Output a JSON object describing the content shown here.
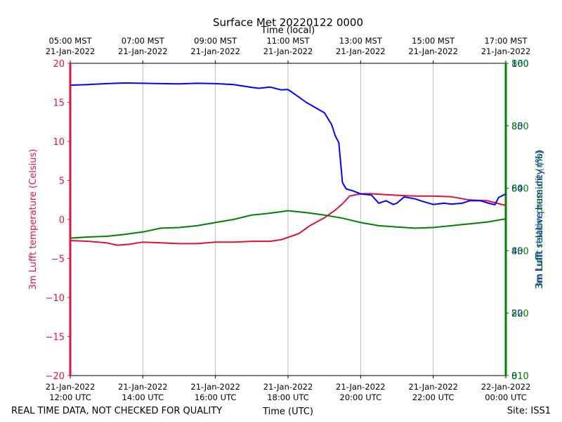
{
  "chart_data": {
    "type": "line",
    "title": "Surface Met 20220122 0000",
    "footer_left": "REAL TIME DATA, NOT CHECKED FOR QUALITY",
    "footer_right": "Site: ISS1",
    "xlabel_bottom": "Time (UTC)",
    "xlabel_top": "Time (local)",
    "xlim_hours_utc": [
      12,
      24
    ],
    "x_ticks_bottom": [
      {
        "hour": 12,
        "line1": "21-Jan-2022",
        "line2": "12:00 UTC"
      },
      {
        "hour": 14,
        "line1": "21-Jan-2022",
        "line2": "14:00 UTC"
      },
      {
        "hour": 16,
        "line1": "21-Jan-2022",
        "line2": "16:00 UTC"
      },
      {
        "hour": 18,
        "line1": "21-Jan-2022",
        "line2": "18:00 UTC"
      },
      {
        "hour": 20,
        "line1": "21-Jan-2022",
        "line2": "20:00 UTC"
      },
      {
        "hour": 22,
        "line1": "21-Jan-2022",
        "line2": "22:00 UTC"
      },
      {
        "hour": 24,
        "line1": "22-Jan-2022",
        "line2": "00:00 UTC"
      }
    ],
    "x_ticks_top": [
      {
        "hour": 12,
        "line1": "05:00 MST",
        "line2": "21-Jan-2022"
      },
      {
        "hour": 14,
        "line1": "07:00 MST",
        "line2": "21-Jan-2022"
      },
      {
        "hour": 16,
        "line1": "09:00 MST",
        "line2": "21-Jan-2022"
      },
      {
        "hour": 18,
        "line1": "11:00 MST",
        "line2": "21-Jan-2022"
      },
      {
        "hour": 20,
        "line1": "13:00 MST",
        "line2": "21-Jan-2022"
      },
      {
        "hour": 22,
        "line1": "15:00 MST",
        "line2": "21-Jan-2022"
      },
      {
        "hour": 24,
        "line1": "17:00 MST",
        "line2": "21-Jan-2022"
      }
    ],
    "left_axis": {
      "label": "3m Lufft temperature (Celsius)",
      "color": "#dc143c",
      "ylim": [
        -20,
        20
      ],
      "ticks": [
        "−20",
        "−15",
        "−10",
        "−5",
        "0",
        "5",
        "10",
        "15",
        "20"
      ]
    },
    "right_axes": [
      {
        "name": "humidity",
        "color": "#0000ff",
        "label": "3m Lufft relative humidity (%)",
        "ylim": [
          0,
          100
        ],
        "ticks": [
          "0",
          "20",
          "40",
          "60",
          "80",
          "100"
        ]
      },
      {
        "name": "pressure",
        "color": "#008000",
        "label": "3m Lufft station pressure (mb)",
        "ylim": [
          810,
          860
        ],
        "ticks": [
          "810",
          "820",
          "830",
          "840",
          "850",
          "860"
        ]
      }
    ],
    "series": [
      {
        "name": "3m Lufft temperature",
        "axis": "left",
        "color": "#dc143c",
        "x": [
          12.0,
          12.5,
          13.0,
          13.3,
          13.6,
          14.0,
          14.5,
          15.0,
          15.5,
          16.0,
          16.5,
          17.0,
          17.5,
          17.8,
          18.0,
          18.3,
          18.6,
          19.0,
          19.3,
          19.5,
          19.7,
          19.9,
          20.1,
          20.3,
          20.6,
          21.0,
          21.5,
          22.0,
          22.5,
          23.0,
          23.5,
          23.9,
          24.0
        ],
        "y": [
          -2.7,
          -2.8,
          -3.0,
          -3.3,
          -3.2,
          -2.9,
          -3.0,
          -3.1,
          -3.1,
          -2.9,
          -2.9,
          -2.8,
          -2.8,
          -2.6,
          -2.3,
          -1.8,
          -0.8,
          0.2,
          1.2,
          2.0,
          3.0,
          3.2,
          3.3,
          3.3,
          3.2,
          3.1,
          3.0,
          3.0,
          2.9,
          2.5,
          2.4,
          1.9,
          1.8
        ]
      },
      {
        "name": "3m Lufft relative humidity",
        "axis": "humidity",
        "color": "#0000ff",
        "x": [
          12.0,
          12.5,
          13.0,
          13.5,
          14.0,
          14.5,
          15.0,
          15.5,
          16.0,
          16.5,
          17.0,
          17.2,
          17.5,
          17.8,
          18.0,
          18.3,
          18.5,
          18.8,
          19.0,
          19.2,
          19.3,
          19.4,
          19.5,
          19.6,
          19.8,
          20.0,
          20.3,
          20.5,
          20.7,
          20.9,
          21.0,
          21.2,
          21.5,
          21.7,
          22.0,
          22.3,
          22.5,
          22.8,
          23.0,
          23.3,
          23.5,
          23.7,
          23.8,
          24.0
        ],
        "y": [
          93.0,
          93.2,
          93.5,
          93.7,
          93.6,
          93.5,
          93.4,
          93.6,
          93.5,
          93.2,
          92.3,
          92.0,
          92.4,
          91.5,
          91.6,
          89.2,
          87.5,
          85.5,
          84.2,
          80.4,
          76.8,
          74.6,
          61.8,
          59.8,
          59.1,
          58.2,
          57.8,
          55.2,
          56.0,
          54.8,
          55.2,
          57.2,
          56.6,
          55.8,
          54.8,
          55.2,
          54.9,
          55.2,
          56.0,
          56.0,
          55.3,
          54.7,
          57.0,
          58.2
        ]
      },
      {
        "name": "3m Lufft station pressure",
        "axis": "pressure",
        "color": "#008000",
        "x": [
          12.0,
          12.5,
          13.0,
          13.5,
          14.0,
          14.5,
          15.0,
          15.5,
          16.0,
          16.5,
          17.0,
          17.5,
          18.0,
          18.5,
          19.0,
          19.5,
          20.0,
          20.5,
          21.0,
          21.5,
          22.0,
          22.5,
          23.0,
          23.5,
          24.0
        ],
        "y": [
          832.0,
          832.2,
          832.3,
          832.6,
          833.0,
          833.6,
          833.7,
          834.0,
          834.5,
          835.0,
          835.7,
          836.0,
          836.4,
          836.1,
          835.7,
          835.2,
          834.5,
          834.0,
          833.8,
          833.6,
          833.7,
          834.0,
          834.3,
          834.6,
          835.1
        ]
      }
    ]
  }
}
